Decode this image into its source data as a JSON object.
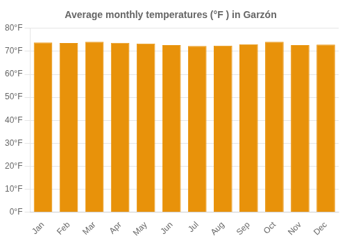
{
  "chart_data": {
    "type": "bar",
    "title": "Average monthly temperatures (°F ) in Garzón",
    "categories": [
      "Jan",
      "Feb",
      "Mar",
      "Apr",
      "May",
      "Jun",
      "Jul",
      "Aug",
      "Sep",
      "Oct",
      "Nov",
      "Dec"
    ],
    "values": [
      73.8,
      73.6,
      74.1,
      73.7,
      73.4,
      72.7,
      72.3,
      72.5,
      73.1,
      74.1,
      72.7,
      72.9
    ],
    "color": "#E8920A",
    "ylim": [
      0,
      80
    ],
    "yticks": [
      {
        "value": 0,
        "label": "0°F"
      },
      {
        "value": 10,
        "label": "10°F"
      },
      {
        "value": 20,
        "label": "20°F"
      },
      {
        "value": 30,
        "label": "30°F"
      },
      {
        "value": 40,
        "label": "40°F"
      },
      {
        "value": 50,
        "label": "50°F"
      },
      {
        "value": 60,
        "label": "60°F"
      },
      {
        "value": 70,
        "label": "70°F"
      },
      {
        "value": 80,
        "label": "80°F"
      }
    ],
    "grid": true
  }
}
